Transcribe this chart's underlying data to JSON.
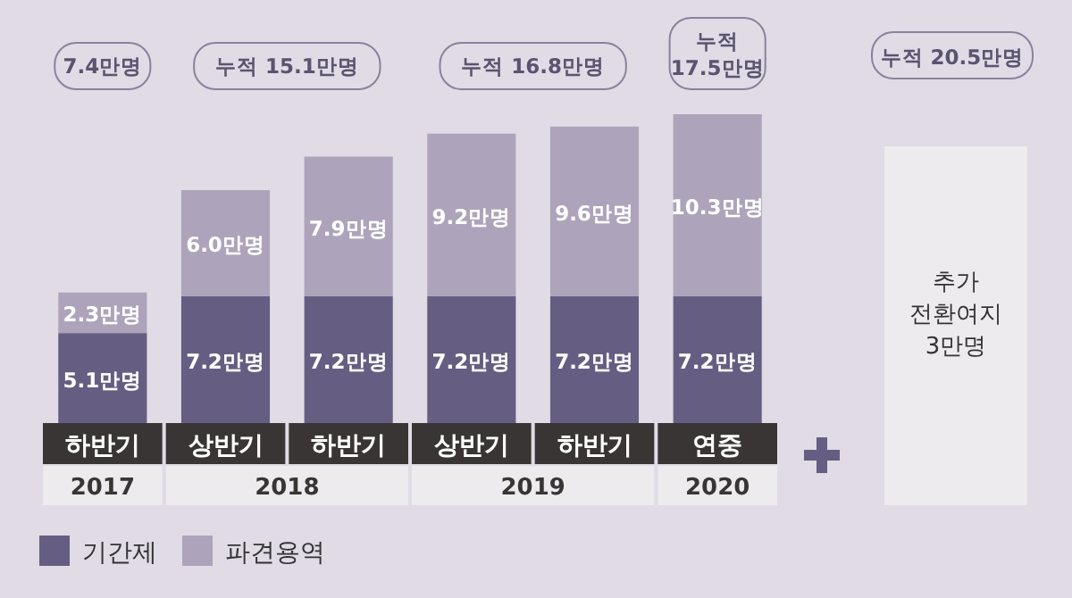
{
  "chart_data": {
    "type": "bar",
    "stacked": true,
    "categories": [
      "하반기",
      "상반기",
      "하반기",
      "상반기",
      "하반기",
      "연중"
    ],
    "series": [
      {
        "name": "기간제",
        "color": "#655e82",
        "values": [
          5.1,
          7.2,
          7.2,
          7.2,
          7.2,
          7.2
        ],
        "value_labels": [
          "5.1만명",
          "7.2만명",
          "7.2만명",
          "7.2만명",
          "7.2만명",
          "7.2만명"
        ]
      },
      {
        "name": "파견용역",
        "color": "#ada4bb",
        "values": [
          2.3,
          6.0,
          7.9,
          9.2,
          9.6,
          10.3
        ],
        "value_labels": [
          "2.3만명",
          "6.0만명",
          "7.9만명",
          "9.2만명",
          "9.6만명",
          "10.3만명"
        ]
      }
    ],
    "annotations": [
      "7.4만명",
      "누적 15.1만명",
      "누적 16.8만명",
      "누적 17.5만명",
      "누적 20.5만명",
      "추가 전환여지 3만명",
      "2017",
      "2018",
      "2019",
      "2020"
    ],
    "legend": "bottom left"
  }
}
